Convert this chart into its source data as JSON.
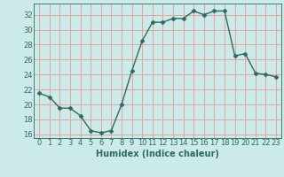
{
  "x": [
    0,
    1,
    2,
    3,
    4,
    5,
    6,
    7,
    8,
    9,
    10,
    11,
    12,
    13,
    14,
    15,
    16,
    17,
    18,
    19,
    20,
    21,
    22,
    23
  ],
  "y": [
    21.5,
    21.0,
    19.5,
    19.5,
    18.5,
    16.5,
    16.2,
    16.5,
    20.0,
    24.5,
    28.5,
    31.0,
    31.0,
    31.5,
    31.5,
    32.5,
    32.0,
    32.5,
    32.5,
    26.5,
    26.8,
    24.2,
    24.0,
    23.7
  ],
  "line_color": "#2e6b5e",
  "marker": "D",
  "marker_size": 2.5,
  "bg_color": "#cceaea",
  "grid_color_v": "#e8a0a0",
  "grid_color_h": "#e8a0a0",
  "xlabel": "Humidex (Indice chaleur)",
  "ylim": [
    15.5,
    33.5
  ],
  "xlim": [
    -0.5,
    23.5
  ],
  "yticks": [
    16,
    18,
    20,
    22,
    24,
    26,
    28,
    30,
    32
  ],
  "xticks": [
    0,
    1,
    2,
    3,
    4,
    5,
    6,
    7,
    8,
    9,
    10,
    11,
    12,
    13,
    14,
    15,
    16,
    17,
    18,
    19,
    20,
    21,
    22,
    23
  ],
  "xtick_labels": [
    "0",
    "1",
    "2",
    "3",
    "4",
    "5",
    "6",
    "7",
    "8",
    "9",
    "10",
    "11",
    "12",
    "13",
    "14",
    "15",
    "16",
    "17",
    "18",
    "19",
    "20",
    "21",
    "22",
    "23"
  ],
  "font_color": "#2e6b5e",
  "tick_fontsize": 6,
  "xlabel_fontsize": 7
}
